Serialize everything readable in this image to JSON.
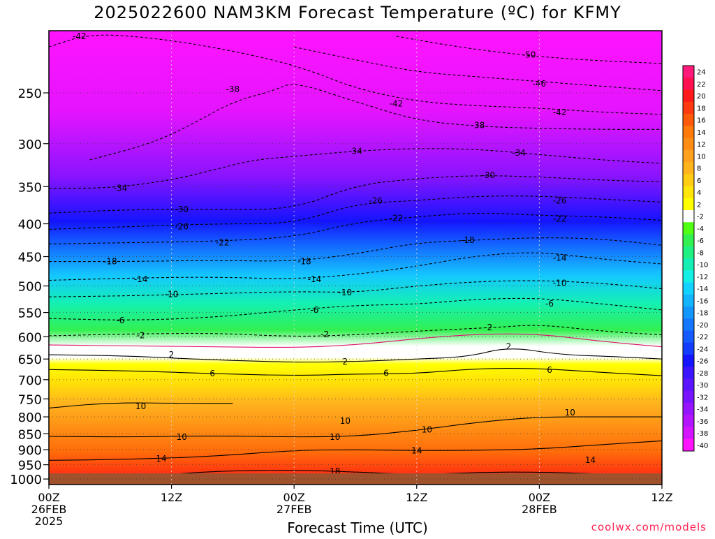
{
  "chart_data": {
    "type": "heatmap",
    "title": "2025022600 NAM3KM Forecast Temperature (ºC) for KFMY",
    "xlabel": "Forecast Time (UTC)",
    "ylabel": "",
    "credit": "coolwx.com/models",
    "x_ticks": [
      {
        "hour": 0,
        "l1": "00Z",
        "l2": "26FEB",
        "l3": "2025"
      },
      {
        "hour": 12,
        "l1": "12Z",
        "l2": "",
        "l3": ""
      },
      {
        "hour": 24,
        "l1": "00Z",
        "l2": "27FEB",
        "l3": ""
      },
      {
        "hour": 36,
        "l1": "12Z",
        "l2": "",
        "l3": ""
      },
      {
        "hour": 48,
        "l1": "00Z",
        "l2": "28FEB",
        "l3": ""
      },
      {
        "hour": 60,
        "l1": "12Z",
        "l2": "",
        "l3": ""
      }
    ],
    "xlim": [
      0,
      60
    ],
    "y_ticks": [
      250,
      300,
      350,
      400,
      450,
      500,
      550,
      600,
      650,
      700,
      750,
      800,
      850,
      900,
      950,
      1000
    ],
    "ylim": [
      200,
      1020
    ],
    "y_scale": "log-pressure",
    "colorbar_labels": [
      "24",
      "22",
      "20",
      "18",
      "16",
      "14",
      "12",
      "10",
      "8",
      "6",
      "4",
      "2",
      "-2",
      "-4",
      "-6",
      "-8",
      "-10",
      "-12",
      "-14",
      "-16",
      "-18",
      "-20",
      "-22",
      "-24",
      "-26",
      "-28",
      "-30",
      "-32",
      "-34",
      "-36",
      "-38",
      "-40"
    ],
    "colorbar_colors": [
      "#ff1a7a",
      "#ff1050",
      "#ff1a1a",
      "#ff3a10",
      "#ff5a0a",
      "#ff7a0a",
      "#ff8c14",
      "#ffa01e",
      "#ffb41e",
      "#ffcc14",
      "#ffe60a",
      "#ffff00",
      "#ffffff",
      "#50ff14",
      "#32f050",
      "#1ef082",
      "#14f0b4",
      "#14f0e6",
      "#14d2ff",
      "#14b4ff",
      "#1496ff",
      "#1478ff",
      "#145aff",
      "#143cff",
      "#1414ff",
      "#3c14ff",
      "#5a14ff",
      "#7814ff",
      "#9614ff",
      "#b414ff",
      "#d214ff",
      "#ff14ff"
    ],
    "contours": [
      {
        "value": 18,
        "style": "solid",
        "points": [
          [
            4,
            1008
          ],
          [
            9,
            992
          ],
          [
            16,
            972
          ],
          [
            24,
            968
          ],
          [
            30,
            975
          ],
          [
            36,
            985
          ],
          [
            42,
            976
          ],
          [
            48,
            975
          ],
          [
            54,
            982
          ],
          [
            60,
            990
          ]
        ],
        "labels": [
          [
            28,
            972
          ]
        ]
      },
      {
        "value": 14,
        "style": "solid",
        "points": [
          [
            0,
            935
          ],
          [
            8,
            932
          ],
          [
            16,
            922
          ],
          [
            24,
            902
          ],
          [
            30,
            900
          ],
          [
            36,
            903
          ],
          [
            42,
            902
          ],
          [
            48,
            898
          ],
          [
            54,
            884
          ],
          [
            60,
            872
          ]
        ],
        "labels": [
          [
            11,
            930
          ],
          [
            36,
            903
          ],
          [
            53,
            934
          ]
        ]
      },
      {
        "value": 10,
        "style": "solid",
        "points": [
          [
            0,
            858
          ],
          [
            8,
            860
          ],
          [
            16,
            856
          ],
          [
            24,
            860
          ],
          [
            30,
            858
          ],
          [
            36,
            840
          ],
          [
            42,
            815
          ],
          [
            48,
            800
          ],
          [
            54,
            800
          ],
          [
            60,
            800
          ]
        ],
        "labels": [
          [
            13,
            860
          ],
          [
            28,
            860
          ],
          [
            37,
            838
          ],
          [
            29,
            812
          ],
          [
            51,
            788
          ],
          [
            9,
            770
          ]
        ]
      },
      {
        "value": 10,
        "style": "solid",
        "points": [
          [
            0,
            775
          ],
          [
            6,
            760
          ],
          [
            13,
            762
          ],
          [
            18,
            762
          ]
        ],
        "labels": []
      },
      {
        "value": 6,
        "style": "solid",
        "points": [
          [
            0,
            675
          ],
          [
            8,
            678
          ],
          [
            16,
            685
          ],
          [
            24,
            690
          ],
          [
            30,
            686
          ],
          [
            36,
            685
          ],
          [
            42,
            672
          ],
          [
            48,
            672
          ],
          [
            54,
            682
          ],
          [
            60,
            690
          ]
        ],
        "labels": [
          [
            16,
            685
          ],
          [
            33,
            684
          ],
          [
            49,
            676
          ]
        ]
      },
      {
        "value": 2,
        "style": "solid",
        "points": [
          [
            0,
            640
          ],
          [
            8,
            643
          ],
          [
            14,
            650
          ],
          [
            24,
            658
          ],
          [
            30,
            656
          ],
          [
            36,
            650
          ],
          [
            41,
            645
          ],
          [
            45,
            622
          ],
          [
            50,
            640
          ],
          [
            56,
            645
          ],
          [
            60,
            650
          ]
        ],
        "labels": [
          [
            12,
            640
          ],
          [
            29,
            656
          ],
          [
            45,
            622
          ]
        ]
      },
      {
        "value": 0,
        "style": "solid-magenta",
        "points": [
          [
            0,
            618
          ],
          [
            8,
            620
          ],
          [
            16,
            622
          ],
          [
            24,
            624
          ],
          [
            30,
            618
          ],
          [
            36,
            604
          ],
          [
            42,
            594
          ],
          [
            48,
            594
          ],
          [
            54,
            610
          ],
          [
            60,
            622
          ]
        ],
        "labels": []
      },
      {
        "value": 2,
        "style": "dashed",
        "points": [
          [
            0,
            598
          ],
          [
            8,
            594
          ],
          [
            16,
            592
          ],
          [
            24,
            600
          ],
          [
            30,
            596
          ],
          [
            36,
            588
          ],
          [
            44,
            580
          ],
          [
            48,
            574
          ],
          [
            54,
            588
          ],
          [
            60,
            596
          ]
        ],
        "labels": [
          [
            9,
            597
          ],
          [
            27,
            595
          ],
          [
            43,
            580
          ]
        ]
      },
      {
        "value": 6,
        "style": "dashed",
        "points": [
          [
            0,
            562
          ],
          [
            8,
            566
          ],
          [
            16,
            560
          ],
          [
            24,
            545
          ],
          [
            30,
            536
          ],
          [
            36,
            534
          ],
          [
            42,
            524
          ],
          [
            48,
            522
          ],
          [
            54,
            533
          ],
          [
            60,
            545
          ]
        ],
        "labels": [
          [
            7,
            566
          ],
          [
            26,
            545
          ],
          [
            49,
            533
          ]
        ]
      },
      {
        "value": 10,
        "style": "dashed",
        "points": [
          [
            0,
            520
          ],
          [
            8,
            518
          ],
          [
            16,
            514
          ],
          [
            24,
            510
          ],
          [
            30,
            512
          ],
          [
            36,
            500
          ],
          [
            42,
            492
          ],
          [
            48,
            490
          ],
          [
            54,
            495
          ],
          [
            60,
            505
          ]
        ],
        "labels": [
          [
            12,
            515
          ],
          [
            29,
            512
          ],
          [
            50,
            495
          ]
        ]
      },
      {
        "value": 14,
        "style": "dashed",
        "points": [
          [
            0,
            490
          ],
          [
            8,
            486
          ],
          [
            16,
            484
          ],
          [
            24,
            488
          ],
          [
            30,
            480
          ],
          [
            36,
            466
          ],
          [
            42,
            448
          ],
          [
            48,
            442
          ],
          [
            54,
            454
          ],
          [
            60,
            462
          ]
        ],
        "labels": [
          [
            9,
            488
          ],
          [
            26,
            488
          ],
          [
            50,
            452
          ]
        ]
      },
      {
        "value": 18,
        "style": "dashed",
        "points": [
          [
            0,
            458
          ],
          [
            8,
            458
          ],
          [
            16,
            456
          ],
          [
            24,
            458
          ],
          [
            30,
            446
          ],
          [
            36,
            428
          ],
          [
            42,
            424
          ],
          [
            48,
            420
          ],
          [
            54,
            422
          ],
          [
            60,
            432
          ]
        ],
        "labels": [
          [
            6,
            458
          ],
          [
            25,
            458
          ],
          [
            41,
            424
          ]
        ]
      },
      {
        "value": 22,
        "style": "dashed",
        "points": [
          [
            0,
            430
          ],
          [
            8,
            428
          ],
          [
            16,
            426
          ],
          [
            24,
            420
          ],
          [
            30,
            398
          ],
          [
            36,
            390
          ],
          [
            42,
            384
          ],
          [
            48,
            388
          ],
          [
            54,
            390
          ],
          [
            60,
            395
          ]
        ],
        "labels": [
          [
            17,
            428
          ],
          [
            34,
            392
          ],
          [
            50,
            393
          ]
        ]
      },
      {
        "value": 26,
        "style": "dashed",
        "points": [
          [
            0,
            408
          ],
          [
            8,
            404
          ],
          [
            16,
            400
          ],
          [
            24,
            400
          ],
          [
            30,
            372
          ],
          [
            36,
            368
          ],
          [
            42,
            362
          ],
          [
            48,
            362
          ],
          [
            54,
            366
          ],
          [
            60,
            370
          ]
        ],
        "labels": [
          [
            13,
            404
          ],
          [
            32,
            368
          ],
          [
            50,
            368
          ]
        ]
      },
      {
        "value": 30,
        "style": "dashed",
        "points": [
          [
            0,
            385
          ],
          [
            8,
            380
          ],
          [
            16,
            380
          ],
          [
            24,
            380
          ],
          [
            30,
            348
          ],
          [
            36,
            340
          ],
          [
            42,
            336
          ],
          [
            48,
            338
          ],
          [
            54,
            342
          ],
          [
            60,
            344
          ]
        ],
        "labels": [
          [
            13,
            380
          ],
          [
            43,
            336
          ]
        ]
      },
      {
        "value": 34,
        "style": "dashed",
        "points": [
          [
            0,
            352
          ],
          [
            6,
            352
          ],
          [
            12,
            342
          ],
          [
            16,
            330
          ],
          [
            20,
            318
          ],
          [
            24,
            314
          ],
          [
            30,
            308
          ],
          [
            36,
            305
          ],
          [
            42,
            306
          ],
          [
            48,
            312
          ],
          [
            54,
            318
          ],
          [
            60,
            322
          ]
        ],
        "labels": [
          [
            7,
            352
          ],
          [
            30,
            308
          ],
          [
            46,
            310
          ]
        ]
      },
      {
        "value": 38,
        "style": "dashed",
        "points": [
          [
            4,
            318
          ],
          [
            10,
            300
          ],
          [
            14,
            280
          ],
          [
            18,
            258
          ],
          [
            22,
            248
          ],
          [
            24,
            240
          ],
          [
            30,
            258
          ],
          [
            36,
            276
          ],
          [
            42,
            282
          ],
          [
            48,
            284
          ],
          [
            54,
            285
          ],
          [
            60,
            285
          ]
        ],
        "labels": [
          [
            18,
            247
          ],
          [
            42,
            281
          ]
        ]
      },
      {
        "value": 42,
        "style": "dashed",
        "points": [
          [
            0,
            212
          ],
          [
            4,
            202
          ],
          [
            10,
            205
          ],
          [
            16,
            212
          ],
          [
            22,
            222
          ],
          [
            26,
            232
          ],
          [
            30,
            246
          ],
          [
            36,
            258
          ],
          [
            42,
            262
          ],
          [
            48,
            264
          ],
          [
            54,
            268
          ],
          [
            60,
            270
          ]
        ],
        "labels": [
          [
            3,
            204
          ],
          [
            34,
            260
          ],
          [
            50,
            268
          ]
        ]
      },
      {
        "value": 46,
        "style": "dashed",
        "points": [
          [
            24,
            212
          ],
          [
            30,
            222
          ],
          [
            36,
            232
          ],
          [
            42,
            236
          ],
          [
            48,
            240
          ],
          [
            54,
            244
          ],
          [
            60,
            248
          ]
        ],
        "labels": [
          [
            48,
            242
          ]
        ]
      },
      {
        "value": 50,
        "style": "dashed",
        "points": [
          [
            34,
            204
          ],
          [
            40,
            212
          ],
          [
            46,
            218
          ],
          [
            52,
            222
          ],
          [
            60,
            225
          ]
        ],
        "labels": [
          [
            47,
            218
          ]
        ]
      }
    ]
  }
}
